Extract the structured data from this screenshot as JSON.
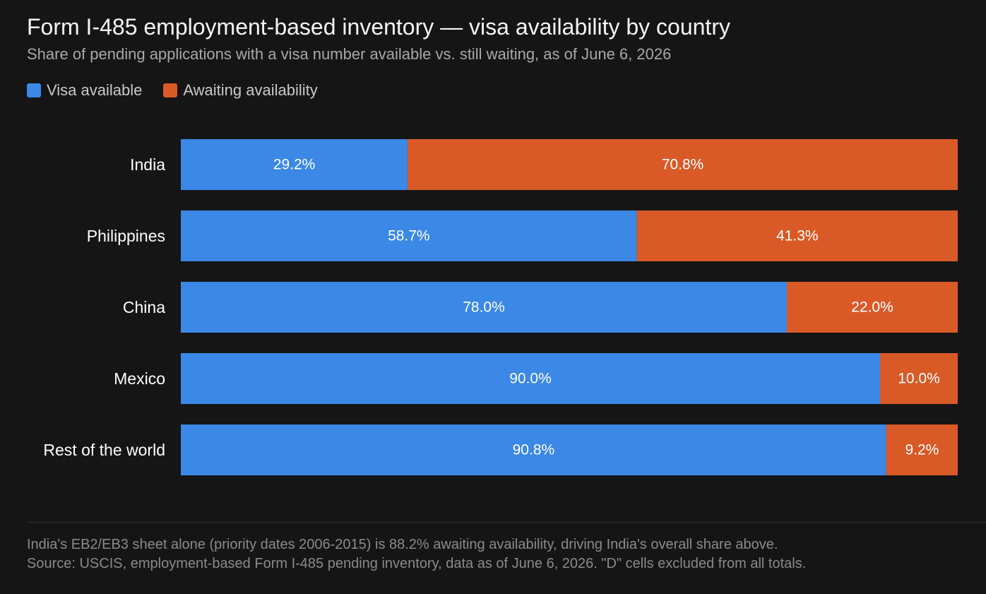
{
  "title": "Form I-485 employment-based inventory — visa availability by country",
  "subtitle": "Share of pending applications with a visa number available vs. still waiting, as of June 6, 2026",
  "footnotes": [
    "India's EB2/EB3 sheet alone (priority dates 2006-2015) is 88.2% awaiting availability, driving India's overall share above.",
    "Source: USCIS, employment-based Form I-485 pending inventory, data as of June 6, 2026. \"D\" cells excluded from all totals."
  ],
  "colors": {
    "available": "#3b88e6",
    "awaiting": "#d95a27",
    "background": "#151515"
  },
  "chart_data": {
    "type": "bar",
    "orientation": "horizontal",
    "stacked": true,
    "categories": [
      "India",
      "Philippines",
      "China",
      "Mexico",
      "Rest of the world"
    ],
    "series": [
      {
        "name": "Visa available",
        "values": [
          29.2,
          58.7,
          78.0,
          90.0,
          90.8
        ],
        "labels": [
          "29.2%",
          "58.7%",
          "78.0%",
          "90.0%",
          "90.8%"
        ]
      },
      {
        "name": "Awaiting availability",
        "values": [
          70.8,
          41.3,
          22.0,
          10.0,
          9.2
        ],
        "labels": [
          "70.8%",
          "41.3%",
          "22.0%",
          "10.0%",
          "9.2%"
        ]
      }
    ],
    "xlim": [
      0,
      100
    ],
    "grid": false,
    "legend_position": "top-left"
  }
}
